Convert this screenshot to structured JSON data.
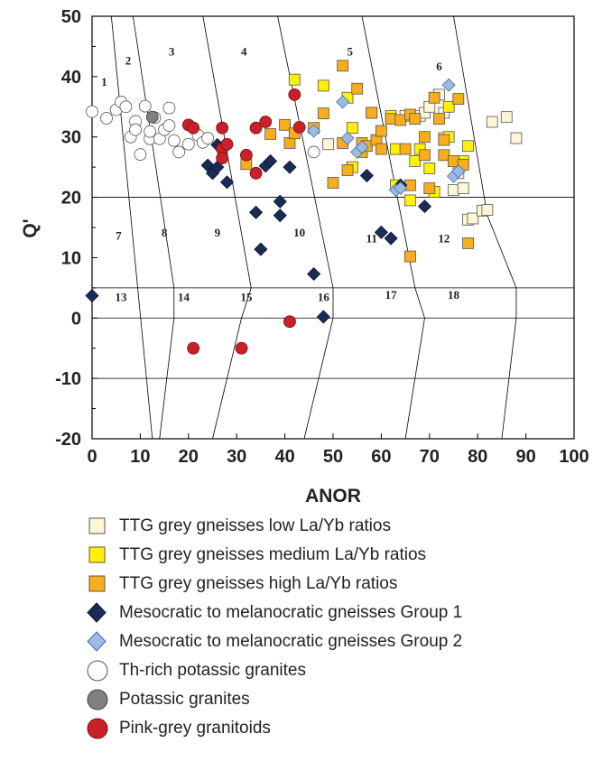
{
  "chart_data": {
    "type": "scatter",
    "title": "",
    "xlabel": "ANOR",
    "ylabel": "Q'",
    "xlim": [
      0,
      100
    ],
    "ylim": [
      -20,
      50
    ],
    "x_ticks": [
      0,
      10,
      20,
      30,
      40,
      50,
      60,
      70,
      80,
      90,
      100
    ],
    "y_ticks": [
      -20,
      -10,
      0,
      10,
      20,
      30,
      40,
      50
    ],
    "grid": false,
    "legend_position": "below",
    "field_labels": [
      {
        "text": "1",
        "x": 2.5,
        "y": 38.5
      },
      {
        "text": "2",
        "x": 7.5,
        "y": 42
      },
      {
        "text": "3",
        "x": 16.5,
        "y": 43.5
      },
      {
        "text": "4",
        "x": 31.5,
        "y": 43.5
      },
      {
        "text": "5",
        "x": 53.5,
        "y": 43.5
      },
      {
        "text": "6",
        "x": 72,
        "y": 41
      },
      {
        "text": "7",
        "x": 5.5,
        "y": 13
      },
      {
        "text": "8",
        "x": 15,
        "y": 13.5
      },
      {
        "text": "9",
        "x": 26,
        "y": 13.5
      },
      {
        "text": "10",
        "x": 43,
        "y": 13.5
      },
      {
        "text": "11",
        "x": 58,
        "y": 12.5
      },
      {
        "text": "12",
        "x": 73,
        "y": 12.5
      },
      {
        "text": "13",
        "x": 6,
        "y": 2.8
      },
      {
        "text": "14",
        "x": 19,
        "y": 2.8
      },
      {
        "text": "15",
        "x": 32,
        "y": 2.8
      },
      {
        "text": "16",
        "x": 48,
        "y": 2.8
      },
      {
        "text": "17",
        "x": 62,
        "y": 3.2
      },
      {
        "text": "18",
        "x": 75,
        "y": 3.2
      }
    ],
    "series": [
      {
        "name": "TTG grey gneisses low La/Yb ratios",
        "marker": "square",
        "fill": "#fcf6d6",
        "stroke": "#555555",
        "points": [
          [
            49,
            28.8
          ],
          [
            65,
            33.5
          ],
          [
            68,
            33.5
          ],
          [
            69,
            34
          ],
          [
            70,
            35
          ],
          [
            72,
            37
          ],
          [
            73,
            29.8
          ],
          [
            73,
            34
          ],
          [
            75,
            21.2
          ],
          [
            76,
            24
          ],
          [
            77,
            21.5
          ],
          [
            78,
            16.3
          ],
          [
            79,
            16.5
          ],
          [
            81,
            17.8
          ],
          [
            82,
            17.9
          ],
          [
            83,
            32.5
          ],
          [
            86,
            33.3
          ],
          [
            88,
            29.8
          ]
        ]
      },
      {
        "name": "TTG grey gneisses medium La/Yb ratios",
        "marker": "square",
        "fill": "#fff100",
        "stroke": "#555555",
        "points": [
          [
            42,
            39.5
          ],
          [
            48,
            38.5
          ],
          [
            53,
            36.5
          ],
          [
            54,
            25
          ],
          [
            58,
            34
          ],
          [
            62,
            33.5
          ],
          [
            63,
            28
          ],
          [
            63,
            22
          ],
          [
            66,
            19.5
          ],
          [
            67,
            26
          ],
          [
            68,
            28
          ],
          [
            70,
            24.8
          ],
          [
            71,
            20.9
          ],
          [
            74,
            35
          ],
          [
            74,
            30
          ],
          [
            77,
            26
          ],
          [
            78,
            28.5
          ],
          [
            54,
            31.5
          ]
        ]
      },
      {
        "name": "TTG grey gneisses high La/Yb ratios",
        "marker": "square",
        "fill": "#f7ae1a",
        "stroke": "#555555",
        "points": [
          [
            32,
            25.5
          ],
          [
            37,
            30.5
          ],
          [
            40,
            32
          ],
          [
            41,
            29
          ],
          [
            42,
            30.6
          ],
          [
            46,
            31.5
          ],
          [
            48,
            33.9
          ],
          [
            50,
            22.4
          ],
          [
            52,
            41.8
          ],
          [
            53,
            24.5
          ],
          [
            55,
            38
          ],
          [
            56,
            29
          ],
          [
            56,
            27.5
          ],
          [
            57,
            28.5
          ],
          [
            58,
            34
          ],
          [
            59,
            29.5
          ],
          [
            60,
            31
          ],
          [
            60,
            28
          ],
          [
            62,
            33
          ],
          [
            64,
            32.8
          ],
          [
            65,
            28
          ],
          [
            66,
            33.7
          ],
          [
            66,
            22
          ],
          [
            67,
            33
          ],
          [
            69,
            27
          ],
          [
            69,
            30
          ],
          [
            70,
            21.5
          ],
          [
            71,
            36.5
          ],
          [
            72,
            33
          ],
          [
            73,
            27
          ],
          [
            73,
            29.5
          ],
          [
            75,
            26
          ],
          [
            76,
            36.3
          ],
          [
            77,
            25.4
          ],
          [
            78,
            12.4
          ],
          [
            66,
            10.2
          ],
          [
            52,
            29
          ]
        ]
      },
      {
        "name": "Mesocratic to melanocratic gneisses Group 1",
        "marker": "diamond",
        "fill": "#1a2b56",
        "stroke": "#0d1733",
        "points": [
          [
            0,
            3.7
          ],
          [
            24,
            25.3
          ],
          [
            25,
            24
          ],
          [
            26,
            25
          ],
          [
            26,
            28.7
          ],
          [
            28,
            22.5
          ],
          [
            34,
            17.5
          ],
          [
            35,
            11.4
          ],
          [
            36,
            25.2
          ],
          [
            37,
            26
          ],
          [
            39,
            19.3
          ],
          [
            39,
            17
          ],
          [
            41,
            25
          ],
          [
            46,
            7.3
          ],
          [
            48,
            0.2
          ],
          [
            57,
            23.6
          ],
          [
            60,
            14.2
          ],
          [
            62,
            13.2
          ],
          [
            64,
            22
          ],
          [
            69,
            18.5
          ]
        ]
      },
      {
        "name": "Mesocratic to melanocratic gneisses Group 2",
        "marker": "diamond",
        "fill": "#9cbbe2",
        "stroke": "#4a6fa5",
        "points": [
          [
            46,
            31
          ],
          [
            52,
            35.8
          ],
          [
            53,
            29.8
          ],
          [
            55,
            27.5
          ],
          [
            56,
            28.3
          ],
          [
            63,
            21.2
          ],
          [
            64,
            21.5
          ],
          [
            75,
            23.5
          ],
          [
            76,
            24.3
          ],
          [
            74,
            38.6
          ]
        ]
      },
      {
        "name": "Th-rich potassic granites",
        "marker": "circle",
        "fill": "#ffffff",
        "stroke": "#555555",
        "points": [
          [
            0,
            34.2
          ],
          [
            3,
            33.1
          ],
          [
            5,
            34.5
          ],
          [
            6,
            35.8
          ],
          [
            7,
            35
          ],
          [
            8,
            30
          ],
          [
            9,
            32.6
          ],
          [
            9,
            31.2
          ],
          [
            10,
            27.1
          ],
          [
            11,
            35.1
          ],
          [
            12,
            29.7
          ],
          [
            12,
            30.9
          ],
          [
            13,
            33.2
          ],
          [
            14,
            29.7
          ],
          [
            15,
            31.2
          ],
          [
            16,
            34.8
          ],
          [
            16,
            31.9
          ],
          [
            17,
            29.4
          ],
          [
            18,
            27.5
          ],
          [
            20,
            28.8
          ],
          [
            22,
            30.3
          ],
          [
            23,
            29.1
          ],
          [
            24,
            29.8
          ],
          [
            46,
            27.5
          ]
        ]
      },
      {
        "name": "Potassic granites",
        "marker": "circle",
        "fill": "#808080",
        "stroke": "#444444",
        "points": [
          [
            12.5,
            33.3
          ]
        ]
      },
      {
        "name": "Pink-grey granitoids",
        "marker": "circle",
        "fill": "#c9202a",
        "stroke": "#7a1015",
        "points": [
          [
            20,
            32
          ],
          [
            21,
            31.5
          ],
          [
            21,
            -5
          ],
          [
            27,
            31.5
          ],
          [
            27,
            28
          ],
          [
            27,
            26.5
          ],
          [
            28,
            28.8
          ],
          [
            31,
            -5
          ],
          [
            32,
            27
          ],
          [
            34,
            31.5
          ],
          [
            34,
            24
          ],
          [
            36,
            32.5
          ],
          [
            41,
            -0.6
          ],
          [
            42,
            37
          ],
          [
            43,
            31.6
          ]
        ]
      }
    ]
  },
  "legend": [
    {
      "label": "TTG grey gneisses low La/Yb ratios"
    },
    {
      "label": "TTG grey gneisses medium La/Yb ratios"
    },
    {
      "label": "TTG grey gneisses high La/Yb ratios"
    },
    {
      "label": "Mesocratic to melanocratic gneisses Group 1"
    },
    {
      "label": "Mesocratic to melanocratic gneisses Group 2"
    },
    {
      "label": "Th-rich potassic granites"
    },
    {
      "label": "Potassic granites"
    },
    {
      "label": "Pink-grey granitoids"
    }
  ]
}
